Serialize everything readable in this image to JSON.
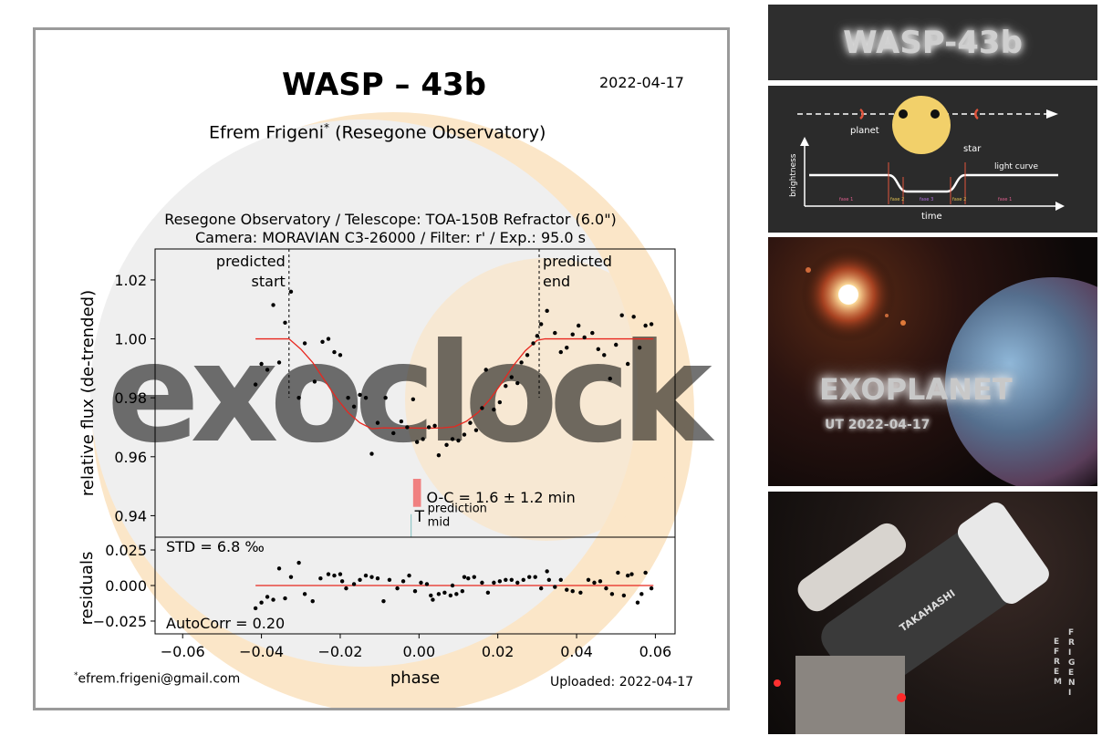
{
  "header": {
    "title": "WASP – 43b",
    "date": "2022-04-17",
    "observer": "Efrem Frigeni",
    "observer_mark": "*",
    "observatory": "(Resegone Observatory)",
    "setup_line1": "Resegone Observatory / Telescope: TOA-150B Refractor (6.0\")",
    "setup_line2": "Camera: MORAVIAN C3-26000 / Filter: r' / Exp.: 95.0 s"
  },
  "footer": {
    "email_mark": "*",
    "email": "efrem.frigeni@gmail.com",
    "uploaded": "Uploaded: 2022-04-17"
  },
  "watermark": {
    "text": "exoclock",
    "color": "#fbd9a8"
  },
  "chart_data": [
    {
      "type": "scatter",
      "panel": "light-curve",
      "xlabel": "",
      "ylabel": "relative flux (de-trended)",
      "xlim": [
        -0.067,
        0.065
      ],
      "ylim": [
        0.9327,
        1.0305
      ],
      "yticks": [
        0.94,
        0.96,
        0.98,
        1.0,
        1.02
      ],
      "ytick_labels": [
        "0.94",
        "0.96",
        "0.98",
        "1.00",
        "1.02"
      ],
      "marker_color": "#000000",
      "points": [
        [
          -0.0415,
          0.9845
        ],
        [
          -0.04,
          0.9915
        ],
        [
          -0.0385,
          0.9895
        ],
        [
          -0.037,
          1.0115
        ],
        [
          -0.0355,
          0.992
        ],
        [
          -0.034,
          1.0055
        ],
        [
          -0.0325,
          1.016
        ],
        [
          -0.0305,
          0.98
        ],
        [
          -0.029,
          0.9985
        ],
        [
          -0.0265,
          0.9855
        ],
        [
          -0.0245,
          0.999
        ],
        [
          -0.023,
          1.0
        ],
        [
          -0.0215,
          0.9955
        ],
        [
          -0.02,
          0.9945
        ],
        [
          -0.018,
          0.98
        ],
        [
          -0.0165,
          0.977
        ],
        [
          -0.015,
          0.981
        ],
        [
          -0.0135,
          0.98
        ],
        [
          -0.012,
          0.961
        ],
        [
          -0.0105,
          0.9715
        ],
        [
          -0.0085,
          0.98
        ],
        [
          -0.0065,
          0.968
        ],
        [
          -0.0045,
          0.972
        ],
        [
          -0.003,
          0.97
        ],
        [
          -0.0015,
          0.9795
        ],
        [
          -0.0005,
          0.965
        ],
        [
          0.001,
          0.966
        ],
        [
          0.0025,
          0.97
        ],
        [
          0.004,
          0.9705
        ],
        [
          0.005,
          0.9605
        ],
        [
          0.007,
          0.964
        ],
        [
          0.0085,
          0.966
        ],
        [
          0.01,
          0.9655
        ],
        [
          0.0115,
          0.9675
        ],
        [
          0.013,
          0.9715
        ],
        [
          0.0145,
          0.969
        ],
        [
          0.016,
          0.9765
        ],
        [
          0.017,
          0.9895
        ],
        [
          0.019,
          0.976
        ],
        [
          0.0205,
          0.9785
        ],
        [
          0.022,
          0.984
        ],
        [
          0.0235,
          0.987
        ],
        [
          0.025,
          0.985
        ],
        [
          0.026,
          0.992
        ],
        [
          0.0275,
          0.9945
        ],
        [
          0.029,
          0.9985
        ],
        [
          0.03,
          1.001
        ],
        [
          0.031,
          1.005
        ],
        [
          0.0325,
          1.0095
        ],
        [
          0.0345,
          1.002
        ],
        [
          0.036,
          0.9955
        ],
        [
          0.0375,
          0.997
        ],
        [
          0.039,
          1.0015
        ],
        [
          0.0405,
          1.0045
        ],
        [
          0.042,
          1.0005
        ],
        [
          0.044,
          1.002
        ],
        [
          0.0455,
          0.9965
        ],
        [
          0.047,
          0.9945
        ],
        [
          0.0485,
          0.9865
        ],
        [
          0.05,
          0.998
        ],
        [
          0.0515,
          1.008
        ],
        [
          0.053,
          0.9915
        ],
        [
          0.0545,
          1.0075
        ],
        [
          0.056,
          0.997
        ],
        [
          0.0575,
          1.0045
        ],
        [
          0.059,
          1.005
        ]
      ],
      "model": {
        "color": "#e8271f",
        "x": [
          -0.0415,
          -0.033,
          -0.03,
          -0.027,
          -0.024,
          -0.021,
          -0.018,
          -0.015,
          -0.012,
          -0.009,
          -0.006,
          -0.003,
          0.0,
          0.003,
          0.006,
          0.009,
          0.012,
          0.015,
          0.018,
          0.021,
          0.024,
          0.027,
          0.03,
          0.032,
          0.0595
        ],
        "y": [
          1.0,
          1.0,
          0.9965,
          0.992,
          0.986,
          0.98,
          0.975,
          0.9715,
          0.9695,
          0.9698,
          0.9697,
          0.9698,
          0.9697,
          0.9697,
          0.9698,
          0.9702,
          0.972,
          0.975,
          0.9795,
          0.985,
          0.991,
          0.996,
          0.9995,
          1.0,
          1.0
        ]
      },
      "predicted_start": {
        "x": -0.033,
        "label_line1": "predicted",
        "label_line2": "start"
      },
      "predicted_end": {
        "x": 0.0305,
        "label_line1": "predicted",
        "label_line2": "end"
      },
      "oc": {
        "text": "O-C = 1.6 ± 1.2 min",
        "box_color": "#f08080",
        "bar_x0": -0.0015,
        "bar_x1": 0.0005,
        "bar_y0": 0.943,
        "bar_y1": 0.9525
      },
      "t_mid": {
        "label": "T",
        "sup": "prediction",
        "sub": "mid",
        "x": -0.002,
        "color": "#7fbfbf"
      }
    },
    {
      "type": "scatter",
      "panel": "residuals",
      "xlabel": "phase",
      "ylabel": "residuals",
      "xlim": [
        -0.067,
        0.065
      ],
      "ylim": [
        -0.034,
        0.034
      ],
      "xticks": [
        -0.06,
        -0.04,
        -0.02,
        0.0,
        0.02,
        0.04,
        0.06
      ],
      "xtick_labels": [
        "−0.06",
        "−0.04",
        "−0.02",
        "0.00",
        "0.02",
        "0.04",
        "0.06"
      ],
      "yticks": [
        0.025,
        0.0,
        -0.025
      ],
      "ytick_labels": [
        "0.025",
        "0.000",
        "−0.025"
      ],
      "std_text": "STD = 6.8 ‰",
      "autocorr_text": "AutoCorr = 0.20",
      "points": [
        [
          -0.0415,
          -0.016
        ],
        [
          -0.04,
          -0.012
        ],
        [
          -0.0385,
          -0.008
        ],
        [
          -0.037,
          -0.01
        ],
        [
          -0.0355,
          0.012
        ],
        [
          -0.034,
          -0.009
        ],
        [
          -0.0325,
          0.006
        ],
        [
          -0.0305,
          0.016
        ],
        [
          -0.029,
          -0.006
        ],
        [
          -0.027,
          -0.011
        ],
        [
          -0.025,
          0.005
        ],
        [
          -0.023,
          0.008
        ],
        [
          -0.0215,
          0.007
        ],
        [
          -0.02,
          0.008
        ],
        [
          -0.0185,
          -0.002
        ],
        [
          -0.0165,
          0.001
        ],
        [
          -0.015,
          0.004
        ],
        [
          -0.0135,
          0.007
        ],
        [
          -0.012,
          0.006
        ],
        [
          -0.0105,
          0.005
        ],
        [
          -0.009,
          -0.011
        ],
        [
          -0.0075,
          0.004
        ],
        [
          -0.0055,
          -0.002
        ],
        [
          -0.004,
          0.003
        ],
        [
          -0.0025,
          0.007
        ],
        [
          -0.001,
          -0.004
        ],
        [
          0.0005,
          0.002
        ],
        [
          0.002,
          0.001
        ],
        [
          0.0035,
          -0.01
        ],
        [
          0.005,
          -0.006
        ],
        [
          0.0065,
          -0.005
        ],
        [
          0.008,
          -0.007
        ],
        [
          0.0095,
          -0.006
        ],
        [
          0.011,
          -0.004
        ],
        [
          0.0125,
          0.005
        ],
        [
          0.014,
          0.006
        ],
        [
          0.016,
          0.002
        ],
        [
          0.0175,
          -0.005
        ],
        [
          0.019,
          0.002
        ],
        [
          0.0205,
          0.003
        ],
        [
          0.022,
          0.004
        ],
        [
          0.0235,
          0.004
        ],
        [
          0.025,
          0.002
        ],
        [
          0.0265,
          0.004
        ],
        [
          0.028,
          0.006
        ],
        [
          0.0295,
          0.006
        ],
        [
          0.031,
          -0.002
        ],
        [
          0.0325,
          0.01
        ],
        [
          0.0345,
          -0.001
        ],
        [
          0.036,
          0.004
        ],
        [
          0.0375,
          -0.003
        ],
        [
          0.039,
          -0.004
        ],
        [
          0.041,
          -0.005
        ],
        [
          0.043,
          0.004
        ],
        [
          0.0445,
          0.002
        ],
        [
          0.046,
          0.003
        ],
        [
          0.0475,
          -0.002
        ],
        [
          0.049,
          -0.006
        ],
        [
          0.0505,
          0.009
        ],
        [
          0.052,
          -0.007
        ],
        [
          0.054,
          0.008
        ],
        [
          0.0555,
          -0.012
        ],
        [
          0.0575,
          0.009
        ],
        [
          0.059,
          -0.002
        ],
        [
          -0.0195,
          0.003
        ],
        [
          0.003,
          -0.007
        ],
        [
          0.0115,
          0.006
        ],
        [
          0.0085,
          0.0
        ],
        [
          0.033,
          0.004
        ],
        [
          0.053,
          0.007
        ],
        [
          0.0565,
          -0.006
        ]
      ],
      "model_color": "#e8271f"
    }
  ],
  "panels": {
    "banner": {
      "title": "WASP-43b"
    },
    "transit_diagram": {
      "planet_label": "planet",
      "star_label": "star",
      "light_curve_label": "light curve",
      "brightness_label": "brightness",
      "time_label": "time",
      "phase_labels": [
        "fase 1",
        "fase 2",
        "fase 3",
        "fase 2",
        "fase 1"
      ],
      "star_color": "#f5d36b",
      "marker_color": "#e0543c"
    },
    "exoplanet": {
      "title": "EXOPLANET",
      "date": "UT 2022-04-17"
    },
    "telescope": {
      "brand": "TAKAHASHI",
      "signature_col1": [
        "E",
        "F",
        "R",
        "E",
        "M"
      ],
      "signature_col2": [
        "F",
        "R",
        "I",
        "G",
        "E",
        "N",
        "I"
      ]
    }
  }
}
